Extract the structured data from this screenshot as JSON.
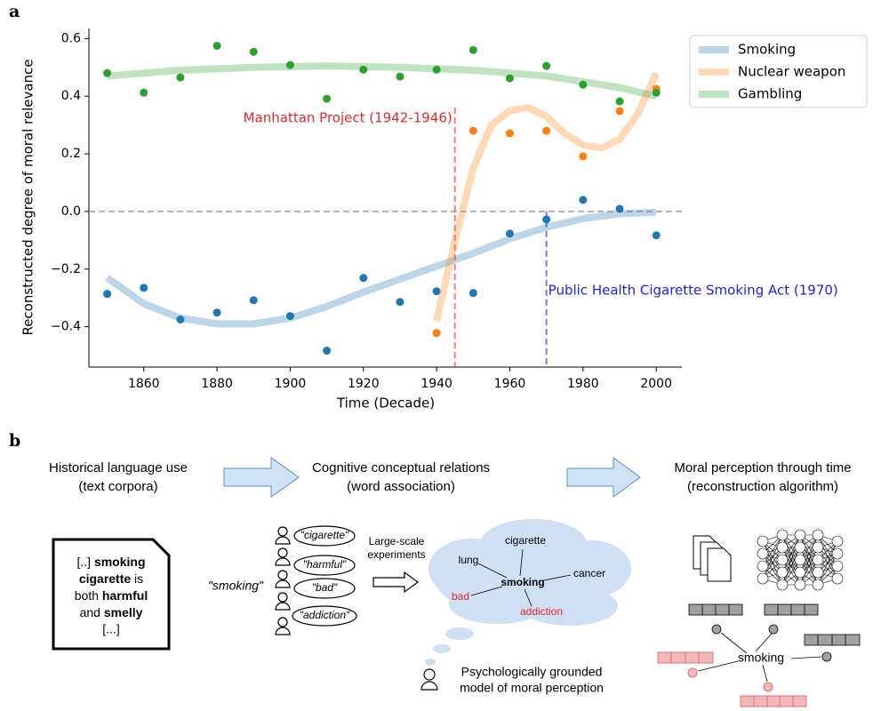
{
  "chart_data": {
    "type": "scatter",
    "panel_label": "a",
    "xlabel": "Time (Decade)",
    "ylabel": "Reconstructed degree of moral relevance",
    "x": [
      1850,
      1860,
      1870,
      1880,
      1890,
      1900,
      1910,
      1920,
      1930,
      1940,
      1950,
      1960,
      1970,
      1980,
      1990,
      2000
    ],
    "series": [
      {
        "name": "Smoking",
        "color": "#1f77b4",
        "values": [
          -0.286,
          -0.265,
          -0.375,
          -0.351,
          -0.308,
          -0.363,
          -0.483,
          -0.231,
          -0.314,
          -0.277,
          -0.283,
          -0.077,
          -0.028,
          0.04,
          0.009,
          -0.083
        ],
        "trend_x": [
          1850,
          1860,
          1870,
          1880,
          1890,
          1900,
          1910,
          1920,
          1930,
          1940,
          1950,
          1960,
          1970,
          1980,
          1990,
          2000
        ],
        "trend": [
          -0.23,
          -0.32,
          -0.37,
          -0.39,
          -0.39,
          -0.37,
          -0.33,
          -0.28,
          -0.235,
          -0.19,
          -0.145,
          -0.095,
          -0.055,
          -0.025,
          -0.008,
          -0.003
        ]
      },
      {
        "name": "Nuclear weapon",
        "color": "#ff7f0e",
        "values": [
          null,
          null,
          null,
          null,
          null,
          null,
          null,
          null,
          null,
          -0.422,
          0.28,
          0.271,
          0.28,
          0.191,
          0.348,
          0.425
        ],
        "trend_x": [
          1940,
          1945,
          1950,
          1955,
          1960,
          1965,
          1970,
          1975,
          1980,
          1985,
          1990,
          1995,
          2000
        ],
        "trend": [
          -0.38,
          -0.1,
          0.15,
          0.3,
          0.35,
          0.36,
          0.33,
          0.27,
          0.23,
          0.22,
          0.25,
          0.34,
          0.48
        ]
      },
      {
        "name": "Gambling",
        "color": "#2ca02c",
        "values": [
          0.48,
          0.412,
          0.465,
          0.575,
          0.554,
          0.508,
          0.391,
          0.492,
          0.468,
          0.492,
          0.56,
          0.462,
          0.505,
          0.44,
          0.382,
          0.412
        ],
        "trend_x": [
          1850,
          1870,
          1890,
          1910,
          1930,
          1950,
          1970,
          1990,
          2000
        ],
        "trend": [
          0.47,
          0.49,
          0.5,
          0.505,
          0.5,
          0.49,
          0.47,
          0.43,
          0.4
        ]
      }
    ],
    "annotations": [
      {
        "text": "Manhattan Project (1942-1946)",
        "x": 1945,
        "top": 0.36,
        "color": "#e8262a"
      },
      {
        "text": "Public Health Cigarette Smoking Act (1970)",
        "x": 1970,
        "top": 0.0,
        "color": "#2020e8"
      }
    ],
    "hline": 0.0,
    "xlim": [
      1845,
      2007
    ],
    "ylim": [
      -0.54,
      0.635
    ],
    "xticks": [
      1860,
      1880,
      1900,
      1920,
      1940,
      1960,
      1980,
      2000
    ],
    "yticks": [
      {
        "value": -0.4,
        "label": "−0.4"
      },
      {
        "value": -0.2,
        "label": "−0.2"
      },
      {
        "value": 0.0,
        "label": "0.0"
      },
      0.2,
      0.4,
      0.6
    ],
    "legend": "upper right"
  },
  "panel_b": {
    "label": "b",
    "stages": [
      [
        "Historical language use",
        "(text corpora)"
      ],
      [
        "Cognitive conceptual relations",
        "(word association)"
      ],
      [
        "Moral perception through time",
        "(reconstruction algorithm)"
      ]
    ],
    "document": [
      "[..] ",
      "smoking",
      "cigarette",
      " is",
      "both ",
      "harmful",
      "and ",
      "smelly",
      "[...]"
    ],
    "cue": "\"smoking\"",
    "responses": [
      "\"cigarette\"",
      "\"harmful\"",
      "\"bad\"",
      "\"addiction\""
    ],
    "experiment": [
      "Large-scale",
      "experiments"
    ],
    "cloud_words": [
      "cigarette",
      "lung",
      "smoking",
      "cancer",
      "bad",
      "addiction"
    ],
    "model_caption": [
      "Psychologically grounded",
      "model of moral perception"
    ],
    "embedding_word": "smoking"
  }
}
